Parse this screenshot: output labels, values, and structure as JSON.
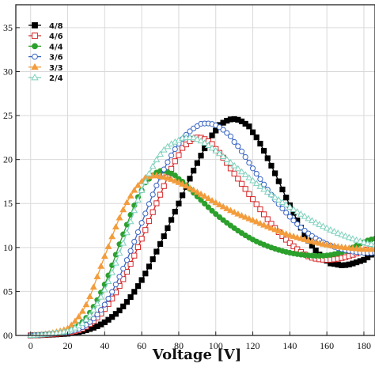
{
  "chart_data": {
    "type": "line",
    "title": "",
    "xlabel": "Voltage [V]",
    "ylabel": "",
    "xlim": [
      -8,
      186
    ],
    "ylim": [
      0.0,
      0.376
    ],
    "grid": true,
    "legend_position": "top-left",
    "x_ticks": [
      0,
      20,
      40,
      60,
      80,
      100,
      120,
      140,
      160,
      180
    ],
    "x_tick_labels": [
      "0",
      "20",
      "40",
      "60",
      "80",
      "100",
      "120",
      "140",
      "160",
      "180"
    ],
    "y_ticks": [
      0.0,
      0.05,
      0.1,
      0.15,
      0.2,
      0.25,
      0.3,
      0.35
    ],
    "y_tick_labels": [
      "00",
      "05",
      "10",
      "15",
      "20",
      "25",
      "30",
      "35"
    ],
    "series": [
      {
        "name": "4/8",
        "color": "#000000",
        "marker": "square-filled",
        "x": [
          0,
          20,
          30,
          40,
          50,
          60,
          70,
          80,
          90,
          100,
          105,
          110,
          115,
          120,
          130,
          140,
          150,
          160,
          165,
          170,
          180,
          186
        ],
        "y": [
          0.0,
          0.002,
          0.006,
          0.015,
          0.033,
          0.063,
          0.104,
          0.15,
          0.196,
          0.233,
          0.243,
          0.246,
          0.242,
          0.231,
          0.193,
          0.148,
          0.108,
          0.085,
          0.081,
          0.08,
          0.086,
          0.094
        ]
      },
      {
        "name": "4/6",
        "color": "#d62728",
        "marker": "square-open",
        "x": [
          0,
          20,
          30,
          40,
          50,
          60,
          70,
          80,
          85,
          90,
          95,
          100,
          110,
          120,
          130,
          140,
          150,
          160,
          170,
          180,
          186
        ],
        "y": [
          0.0,
          0.003,
          0.01,
          0.03,
          0.064,
          0.11,
          0.16,
          0.205,
          0.219,
          0.225,
          0.222,
          0.212,
          0.184,
          0.155,
          0.127,
          0.105,
          0.09,
          0.086,
          0.089,
          0.096,
          0.1
        ]
      },
      {
        "name": "4/4",
        "color": "#2ca02c",
        "marker": "circle-filled",
        "x": [
          0,
          20,
          30,
          40,
          50,
          60,
          65,
          70,
          75,
          80,
          90,
          100,
          110,
          120,
          130,
          140,
          150,
          160,
          170,
          180,
          186
        ],
        "y": [
          0.0,
          0.005,
          0.02,
          0.058,
          0.115,
          0.165,
          0.18,
          0.187,
          0.185,
          0.178,
          0.158,
          0.138,
          0.122,
          0.109,
          0.1,
          0.094,
          0.091,
          0.091,
          0.096,
          0.106,
          0.11
        ]
      },
      {
        "name": "3/6",
        "color": "#3a66c4",
        "marker": "circle-open",
        "x": [
          0,
          20,
          30,
          40,
          50,
          60,
          70,
          80,
          90,
          95,
          100,
          105,
          110,
          120,
          130,
          140,
          150,
          160,
          170,
          180,
          186
        ],
        "y": [
          0.0,
          0.004,
          0.012,
          0.035,
          0.076,
          0.128,
          0.18,
          0.218,
          0.238,
          0.241,
          0.239,
          0.232,
          0.22,
          0.19,
          0.16,
          0.135,
          0.116,
          0.104,
          0.097,
          0.094,
          0.094
        ]
      },
      {
        "name": "3/3",
        "color": "#f39c3c",
        "marker": "triangle-filled",
        "x": [
          0,
          20,
          30,
          40,
          50,
          60,
          65,
          70,
          80,
          90,
          100,
          110,
          120,
          130,
          140,
          150,
          160,
          170,
          180,
          186
        ],
        "y": [
          0.0,
          0.008,
          0.035,
          0.09,
          0.143,
          0.175,
          0.181,
          0.181,
          0.174,
          0.163,
          0.151,
          0.14,
          0.131,
          0.122,
          0.114,
          0.108,
          0.103,
          0.1,
          0.098,
          0.098
        ]
      },
      {
        "name": "2/4",
        "color": "#7fd1bd",
        "marker": "triangle-open",
        "x": [
          0,
          20,
          30,
          40,
          50,
          60,
          70,
          80,
          85,
          90,
          100,
          110,
          120,
          130,
          140,
          150,
          160,
          170,
          180,
          186
        ],
        "y": [
          0.0,
          0.005,
          0.018,
          0.052,
          0.105,
          0.165,
          0.206,
          0.222,
          0.225,
          0.223,
          0.21,
          0.193,
          0.176,
          0.16,
          0.146,
          0.133,
          0.122,
          0.113,
          0.106,
          0.103
        ]
      }
    ]
  }
}
